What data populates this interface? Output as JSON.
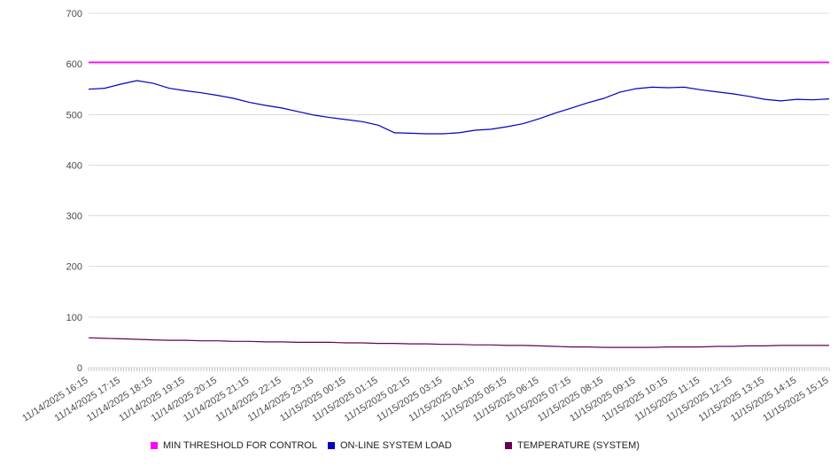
{
  "chart_data": {
    "type": "line",
    "title": "",
    "xlabel": "",
    "ylabel": "",
    "ylim": [
      0,
      700
    ],
    "yticks": [
      0,
      100,
      200,
      300,
      400,
      500,
      600,
      700
    ],
    "grid": "horizontal",
    "legend_position": "bottom",
    "x_labels": [
      "11/14/2025 16:15",
      "11/14/2025 17:15",
      "11/14/2025 18:15",
      "11/14/2025 19:15",
      "11/14/2025 20:15",
      "11/14/2025 21:15",
      "11/14/2025 22:15",
      "11/14/2025 23:15",
      "11/15/2025 00:15",
      "11/15/2025 01:15",
      "11/15/2025 02:15",
      "11/15/2025 03:15",
      "11/15/2025 04:15",
      "11/15/2025 05:15",
      "11/15/2025 06:15",
      "11/15/2025 07:15",
      "11/15/2025 08:15",
      "11/15/2025 09:15",
      "11/15/2025 10:15",
      "11/15/2025 11:15",
      "11/15/2025 12:15",
      "11/15/2025 13:15",
      "11/15/2025 14:15",
      "11/15/2025 15:15"
    ],
    "series": [
      {
        "id": "min-threshold",
        "name": "MIN THRESHOLD FOR CONTROL",
        "color": "#ff00ff",
        "values": [
          603,
          603
        ]
      },
      {
        "id": "system-load",
        "name": "ON-LINE SYSTEM LOAD",
        "color": "#0000bf",
        "values": [
          550,
          552,
          560,
          567,
          562,
          552,
          547,
          543,
          538,
          532,
          524,
          518,
          513,
          506,
          499,
          494,
          490,
          486,
          479,
          464,
          463,
          462,
          462,
          464,
          469,
          471,
          476,
          482,
          492,
          503,
          513,
          523,
          532,
          544,
          551,
          554,
          553,
          554,
          549,
          545,
          541,
          536,
          530,
          527,
          530,
          529,
          531
        ]
      },
      {
        "id": "temperature",
        "name": "TEMPERATURE (SYSTEM)",
        "color": "#660055",
        "values": [
          59,
          58,
          57,
          56,
          55,
          54,
          54,
          53,
          53,
          52,
          52,
          51,
          51,
          50,
          50,
          50,
          49,
          49,
          48,
          48,
          47,
          47,
          46,
          46,
          45,
          45,
          44,
          44,
          43,
          42,
          41,
          41,
          40,
          40,
          40,
          40,
          41,
          41,
          41,
          42,
          42,
          43,
          43,
          44,
          44,
          44,
          44
        ]
      }
    ]
  },
  "legend": {
    "items": [
      {
        "label": "MIN THRESHOLD FOR CONTROL"
      },
      {
        "label": "ON-LINE SYSTEM LOAD"
      },
      {
        "label": "TEMPERATURE (SYSTEM)"
      }
    ]
  }
}
